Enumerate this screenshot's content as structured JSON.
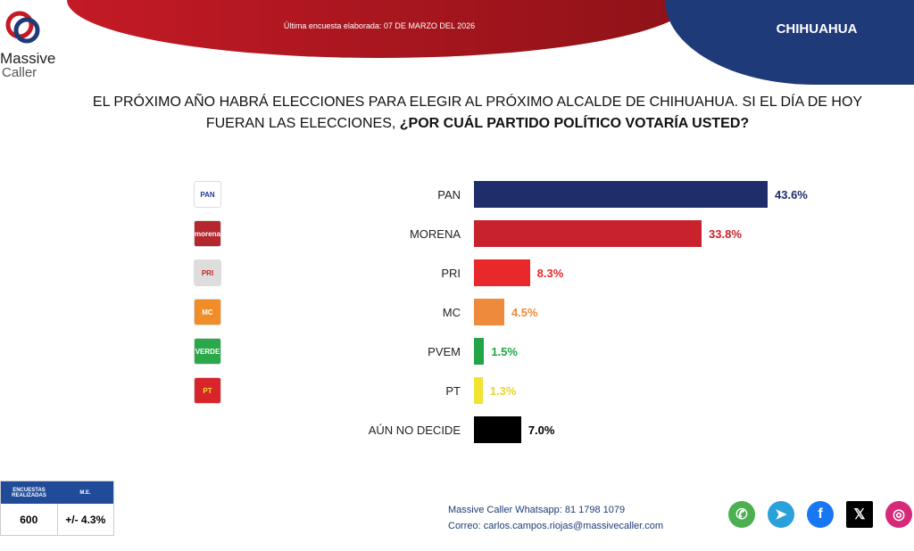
{
  "header": {
    "survey_date": "Última encuesta elaborada: 07 DE MARZO DEL 2026",
    "region": "CHIHUAHUA",
    "logo_text_1": "Massive",
    "logo_text_2": "Caller"
  },
  "question": {
    "line1": "EL PRÓXIMO AÑO HABRÁ ELECCIONES PARA ELEGIR AL PRÓXIMO ALCALDE DE CHIHUAHUA. SI EL DÍA DE HOY",
    "line2_plain": "FUERAN LAS ELECCIONES, ",
    "line2_bold": "¿POR CUÁL PARTIDO POLÍTICO VOTARÍA USTED?"
  },
  "chart_data": {
    "type": "bar",
    "orientation": "horizontal",
    "categories": [
      "PAN",
      "MORENA",
      "PRI",
      "MC",
      "PVEM",
      "PT",
      "AÚN NO DECIDE"
    ],
    "values": [
      43.6,
      33.8,
      8.3,
      4.5,
      1.5,
      1.3,
      7.0
    ],
    "data_labels": [
      "43.6%",
      "33.8%",
      "8.3%",
      "4.5%",
      "1.5%",
      "1.3%",
      "7.0%"
    ],
    "colors": [
      "#1f2e6b",
      "#c8222c",
      "#e8282b",
      "#ee8a3c",
      "#21a546",
      "#f1e332",
      "#000000"
    ],
    "label_colors": [
      "#1f2e6b",
      "#c8222c",
      "#e8282b",
      "#ee8a3c",
      "#21a546",
      "#e8d62a",
      "#000000"
    ],
    "party_logos": [
      {
        "text": "PAN",
        "bg": "#ffffff",
        "fg": "#1f3a9c"
      },
      {
        "text": "morena",
        "bg": "#b3272d",
        "fg": "#ffffff"
      },
      {
        "text": "PRI",
        "bg": "#dddddd",
        "fg": "#c8222c"
      },
      {
        "text": "MC",
        "bg": "#f28c28",
        "fg": "#ffffff"
      },
      {
        "text": "VERDE",
        "bg": "#2aa84a",
        "fg": "#ffffff"
      },
      {
        "text": "PT",
        "bg": "#d8252c",
        "fg": "#f6e02b"
      }
    ]
  },
  "stats": {
    "surveys_label": "ENCUESTAS REALIZADAS",
    "me_label": "M.E.",
    "surveys": "600",
    "me": "+/- 4.3%"
  },
  "footer": {
    "whatsapp": "Massive Caller Whatsapp: 81 1798 1079",
    "email": "Correo: carlos.campos.riojas@massivecaller.com"
  },
  "social": [
    {
      "icon": "whatsapp-icon",
      "color": "#4caf50"
    },
    {
      "icon": "telegram-icon",
      "color": "#2aa1da"
    },
    {
      "icon": "facebook-icon",
      "color": "#1877f2"
    },
    {
      "icon": "x-icon",
      "color": "#000000"
    },
    {
      "icon": "instagram-icon",
      "color": "#d6297a"
    }
  ]
}
